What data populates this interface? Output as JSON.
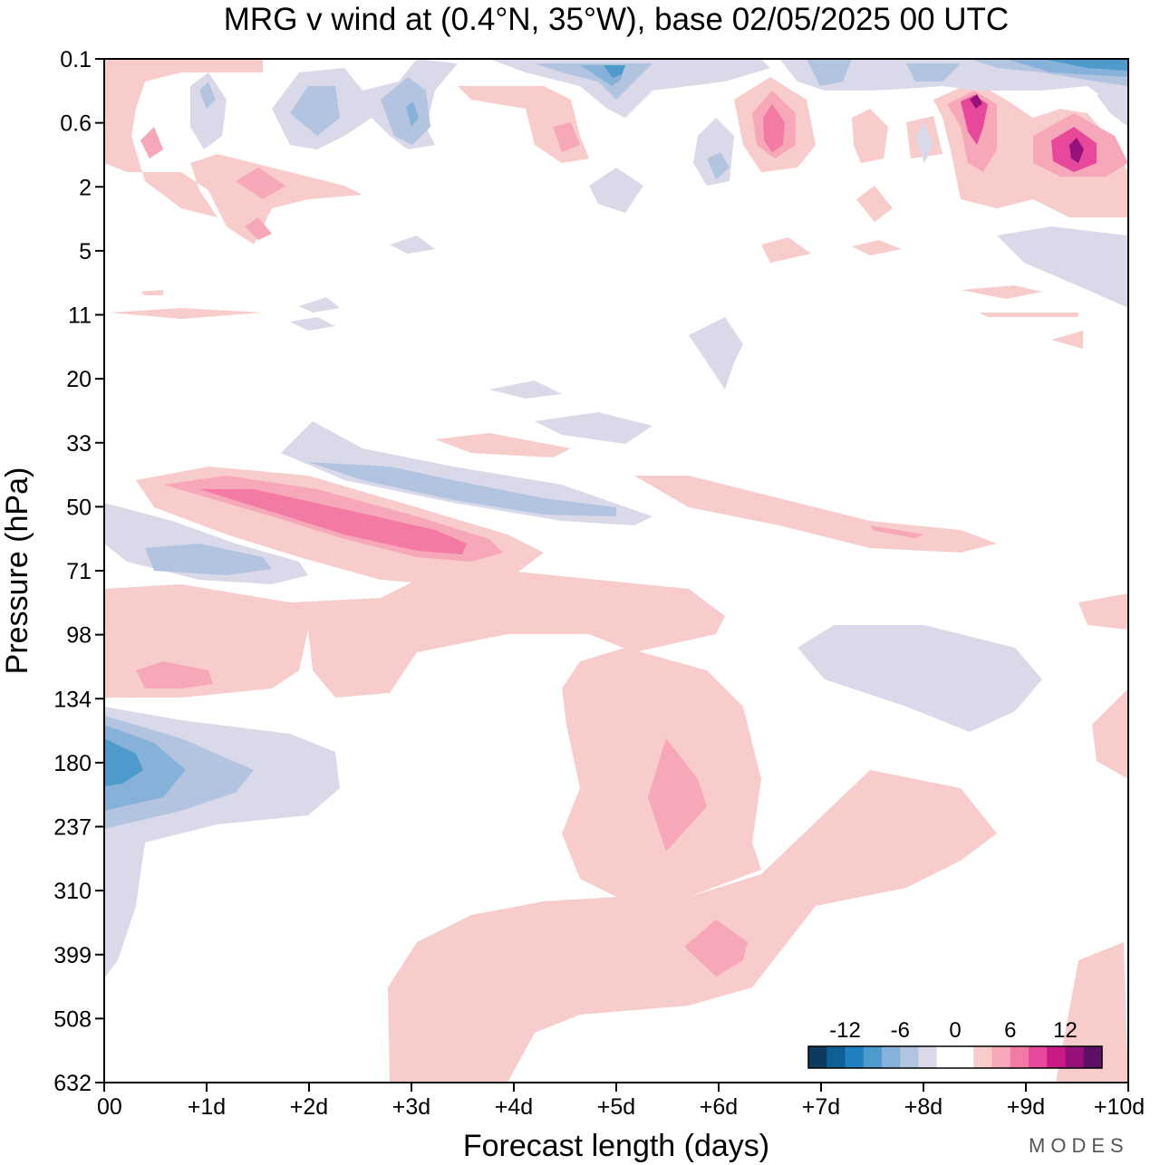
{
  "chart_data": {
    "type": "heatmap",
    "title": "MRG v wind at (0.4°N, 35°W),  base 02/05/2025  00 UTC",
    "xlabel": "Forecast length (days)",
    "ylabel": "Pressure (hPa)",
    "x_ticks": [
      "00",
      "+1d",
      "+2d",
      "+3d",
      "+4d",
      "+5d",
      "+6d",
      "+7d",
      "+8d",
      "+9d",
      "+10d"
    ],
    "x_range_days": [
      0,
      10
    ],
    "y_ticks": [
      "0.1",
      "0.6",
      "2",
      "5",
      "11",
      "20",
      "33",
      "50",
      "71",
      "98",
      "134",
      "180",
      "237",
      "310",
      "399",
      "508",
      "632"
    ],
    "y_range_hpa": [
      0.1,
      632
    ],
    "colorbar": {
      "tick_labels": [
        "-12",
        "-6",
        "0",
        "6",
        "12"
      ],
      "colors": [
        "#0d3b5e",
        "#105f96",
        "#1f7fbf",
        "#4f9acc",
        "#86b1d8",
        "#b3c4e0",
        "#d9d9ea",
        "#ffffff",
        "#ffffff",
        "#f9cccc",
        "#f7a8b8",
        "#f27aa5",
        "#e8489a",
        "#c91a86",
        "#95127a",
        "#5c1066"
      ]
    },
    "notable_features": [
      {
        "label": "positive v maximum",
        "x_days": [
          0.8,
          3.5
        ],
        "pressure_hpa": [
          45,
          65
        ],
        "value": 8
      },
      {
        "label": "negative v minimum",
        "x_days": [
          0,
          0.5
        ],
        "pressure_hpa": [
          160,
          210
        ],
        "value": -10
      },
      {
        "label": "negative v band",
        "x_days": [
          2.1,
          5.0
        ],
        "pressure_hpa": [
          38,
          55
        ],
        "value": -4
      },
      {
        "label": "upper positive maximum",
        "x_days": [
          9.3,
          9.6
        ],
        "pressure_hpa": [
          0.8,
          1.5
        ],
        "value": 14
      },
      {
        "label": "upper negative",
        "x_days": [
          9.0,
          10.0
        ],
        "pressure_hpa": [
          0.1,
          0.2
        ],
        "value": -8
      }
    ]
  },
  "credit": "MODES"
}
